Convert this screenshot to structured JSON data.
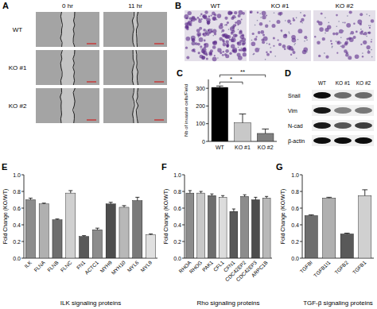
{
  "panel_a": {
    "panel_label": "A",
    "columns": [
      "0 hr",
      "11 hr"
    ],
    "rows": [
      "WT",
      "KO #1",
      "KO #2"
    ]
  },
  "panel_b": {
    "panel_label": "B",
    "columns": [
      "WT",
      "KO #1",
      "KO #2"
    ]
  },
  "panel_d": {
    "panel_label": "D",
    "columns": [
      "WT",
      "KO #1",
      "KO #2"
    ],
    "rows": [
      "Snail",
      "Vim",
      "N-cad",
      "β-actin"
    ]
  },
  "chart_data": [
    {
      "type": "bar",
      "panel_label": "C",
      "y_label": "Nb of invasive cells/Field",
      "categories": [
        "WT",
        "KO #1",
        "KO #2"
      ],
      "values": [
        305,
        105,
        45
      ],
      "errors": [
        8,
        50,
        25
      ],
      "colors": [
        "#000000",
        "#c8c8c8",
        "#808080"
      ],
      "ylim": [
        0,
        350
      ],
      "yticks": [
        0,
        100,
        200,
        300
      ],
      "significance": [
        {
          "from": "WT",
          "to": "KO #1",
          "label": "*"
        },
        {
          "from": "WT",
          "to": "KO #2",
          "label": "**"
        }
      ]
    },
    {
      "type": "bar",
      "panel_label": "E",
      "y_label": "Fold Change (KO/WT)",
      "x_label": "ILK signaling proteins",
      "categories": [
        "ILK",
        "FLNA",
        "FLNB",
        "FLNC",
        "FN1",
        "ACTC1",
        "MYH9",
        "MYH10",
        "MYL6",
        "MYL9"
      ],
      "values": [
        0.7,
        0.65,
        0.46,
        0.78,
        0.26,
        0.34,
        0.65,
        0.61,
        0.69,
        0.28
      ],
      "errors": [
        0.02,
        0.01,
        0.01,
        0.03,
        0.01,
        0.02,
        0.02,
        0.02,
        0.04,
        0.01
      ],
      "colors": [
        "#8c8c8c",
        "#b0b0b0",
        "#6e6e6e",
        "#d0d0d0",
        "#595959",
        "#8c8c8c",
        "#4d4d4d",
        "#b8b8b8",
        "#7a7a7a",
        "#e0e0e0"
      ],
      "ylim": [
        0,
        1
      ],
      "yticks": [
        {
          "value": 0,
          "label": "0.0"
        },
        0.2,
        0.4,
        0.6,
        0.8,
        {
          "value": 1,
          "label": "1.0"
        }
      ]
    },
    {
      "type": "bar",
      "panel_label": "F",
      "y_label": "Fold Change (KO/WT)",
      "x_label": "Rho signaling proteins",
      "categories": [
        "RHOA",
        "RHOG",
        "PAK1",
        "CFL1",
        "CFN1",
        "CDC42EP2",
        "CDC42EP3",
        "ARPC1B"
      ],
      "values": [
        0.78,
        0.78,
        0.75,
        0.73,
        0.56,
        0.74,
        0.7,
        0.72
      ],
      "errors": [
        0.03,
        0.02,
        0.02,
        0.02,
        0.03,
        0.02,
        0.03,
        0.02
      ],
      "colors": [
        "#8c8c8c",
        "#c8c8c8",
        "#6e6e6e",
        "#dcdcdc",
        "#595959",
        "#8c8c8c",
        "#4d4d4d",
        "#b8b8b8"
      ],
      "ylim": [
        0,
        1
      ],
      "yticks": [
        {
          "value": 0,
          "label": "0.0"
        },
        0.2,
        0.4,
        0.6,
        0.8,
        {
          "value": 1,
          "label": "1.0"
        }
      ]
    },
    {
      "type": "bar",
      "panel_label": "G",
      "y_label": "Fold Change (KO/WT)",
      "x_label": "TGF-β signaling proteins",
      "categories": [
        "TGFBI",
        "TGFB1I1",
        "TGFB2",
        "TGFB1"
      ],
      "values": [
        0.51,
        0.72,
        0.29,
        0.75
      ],
      "errors": [
        0.01,
        0.01,
        0.01,
        0.07
      ],
      "colors": [
        "#6e6e6e",
        "#b0b0b0",
        "#595959",
        "#d0d0d0"
      ],
      "ylim": [
        0,
        1
      ],
      "yticks": [
        {
          "value": 0,
          "label": "0.0"
        },
        0.2,
        0.4,
        0.6,
        0.8,
        {
          "value": 1,
          "label": "1.0"
        }
      ]
    }
  ]
}
